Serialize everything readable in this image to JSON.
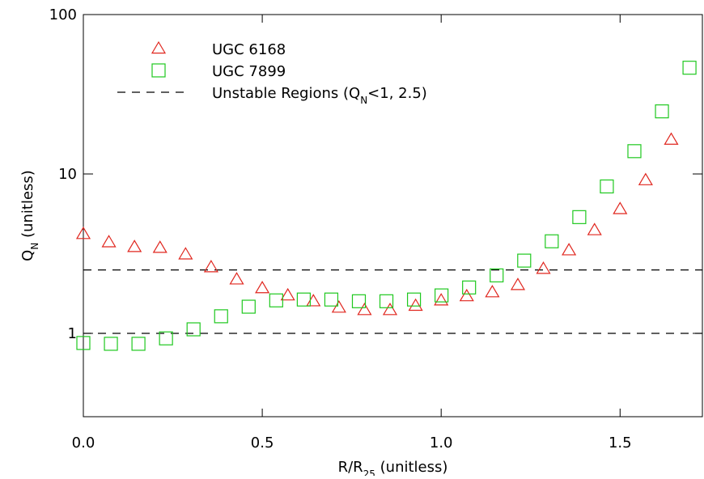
{
  "chart_data": {
    "type": "scatter",
    "xlabel": [
      "R/R",
      "25",
      " (unitless)"
    ],
    "ylabel": [
      "Q",
      "N",
      " (unitless)"
    ],
    "xlim": [
      0,
      1.73
    ],
    "ylim": [
      0.3,
      100
    ],
    "log_y": true,
    "xticks": [
      {
        "value": 0,
        "label": "0.0"
      },
      {
        "value": 0.5,
        "label": "0.5"
      },
      {
        "value": 1,
        "label": "1.0"
      },
      {
        "value": 1.5,
        "label": "1.5"
      }
    ],
    "yticks": [
      1,
      10,
      100
    ],
    "series": [
      {
        "name": "UGC 6168",
        "marker": "triangle",
        "color": "#e0261e",
        "x": [
          0,
          0.0714,
          0.1429,
          0.2143,
          0.2857,
          0.3571,
          0.4286,
          0.5,
          0.5714,
          0.6429,
          0.7143,
          0.7857,
          0.8571,
          0.9286,
          1,
          1.0714,
          1.1429,
          1.2143,
          1.2857,
          1.3571,
          1.4286,
          1.5,
          1.5714,
          1.6429
        ],
        "values": [
          4.2,
          3.73,
          3.48,
          3.44,
          3.13,
          2.6,
          2.18,
          1.92,
          1.73,
          1.59,
          1.45,
          1.4,
          1.4,
          1.49,
          1.61,
          1.71,
          1.81,
          2.01,
          2.54,
          3.32,
          4.44,
          6.02,
          9.14,
          16.4
        ]
      },
      {
        "name": "UGC 7899",
        "marker": "square",
        "color": "#1ec81e",
        "x": [
          0,
          0.077,
          0.154,
          0.231,
          0.308,
          0.385,
          0.462,
          0.539,
          0.616,
          0.693,
          0.77,
          0.847,
          0.924,
          1.001,
          1.078,
          1.155,
          1.232,
          1.309,
          1.386,
          1.463,
          1.54,
          1.617,
          1.694
        ],
        "values": [
          0.87,
          0.86,
          0.86,
          0.93,
          1.06,
          1.28,
          1.47,
          1.61,
          1.63,
          1.63,
          1.59,
          1.59,
          1.63,
          1.73,
          1.94,
          2.31,
          2.86,
          3.78,
          5.36,
          8.35,
          13.9,
          24.7,
          46.4
        ]
      }
    ],
    "reference_lines": {
      "label": [
        "Unstable Regions (Q",
        "N",
        "<1, 2.5)"
      ],
      "values": [
        1,
        2.5
      ]
    }
  }
}
